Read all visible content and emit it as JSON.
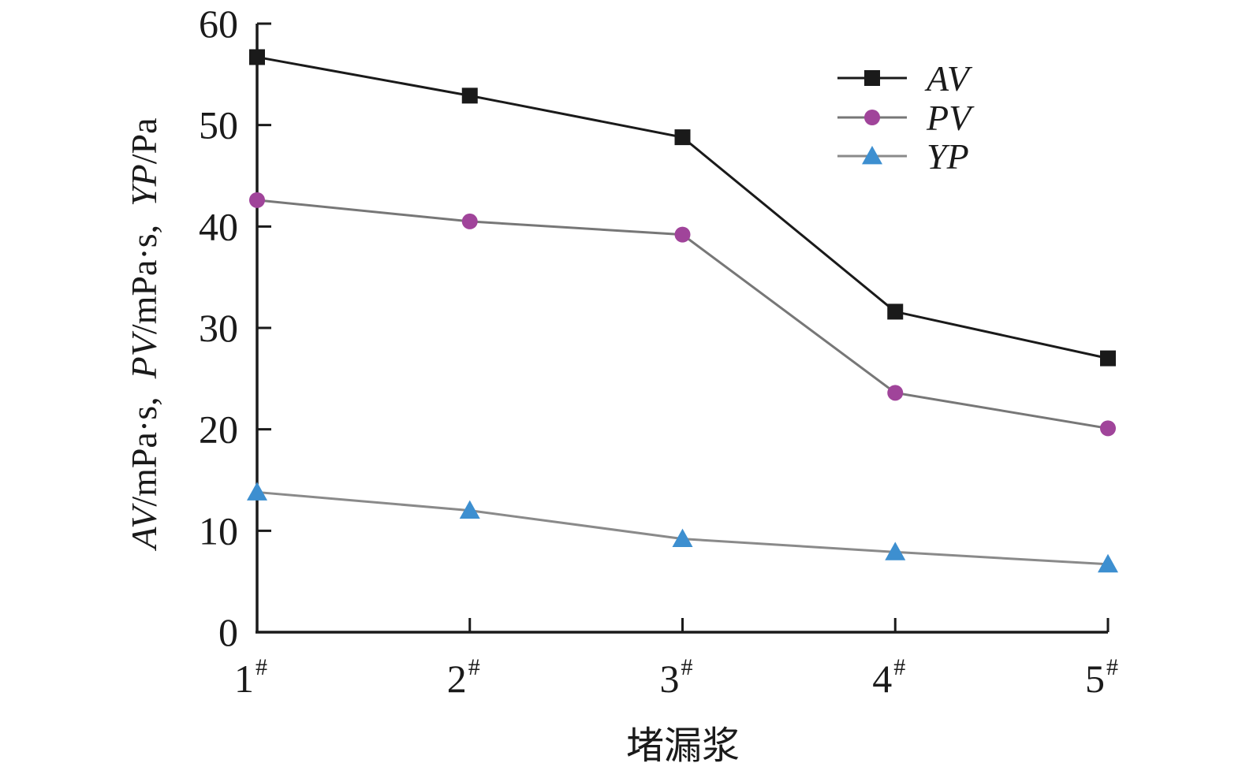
{
  "chart_data": {
    "type": "line",
    "categories": [
      "1",
      "2",
      "3",
      "4",
      "5"
    ],
    "category_suffix": "#",
    "xlabel": "堵漏浆",
    "ylabel_parts": [
      {
        "text": "AV",
        "italic": true
      },
      {
        "text": "/mPa·s,  ",
        "italic": false
      },
      {
        "text": "PV",
        "italic": true
      },
      {
        "text": "/mPa·s,  ",
        "italic": false
      },
      {
        "text": "YP",
        "italic": true
      },
      {
        "text": "/Pa",
        "italic": false
      }
    ],
    "ylim": [
      0,
      60
    ],
    "yticks": [
      0,
      10,
      20,
      30,
      40,
      50,
      60
    ],
    "grid": false,
    "legend_position": "top-right",
    "series": [
      {
        "name": "AV",
        "values": [
          56.7,
          52.9,
          48.8,
          31.6,
          27.0
        ],
        "marker": "square",
        "line_color": "#1a1a1a",
        "marker_color": "#1a1a1a"
      },
      {
        "name": "PV",
        "values": [
          42.6,
          40.5,
          39.2,
          23.6,
          20.1
        ],
        "marker": "circle",
        "line_color": "#777777",
        "marker_color": "#a0449a"
      },
      {
        "name": "YP",
        "values": [
          13.8,
          12.0,
          9.2,
          7.9,
          6.7
        ],
        "marker": "triangle",
        "line_color": "#8a8a8a",
        "marker_color": "#3d8fd0"
      }
    ]
  }
}
